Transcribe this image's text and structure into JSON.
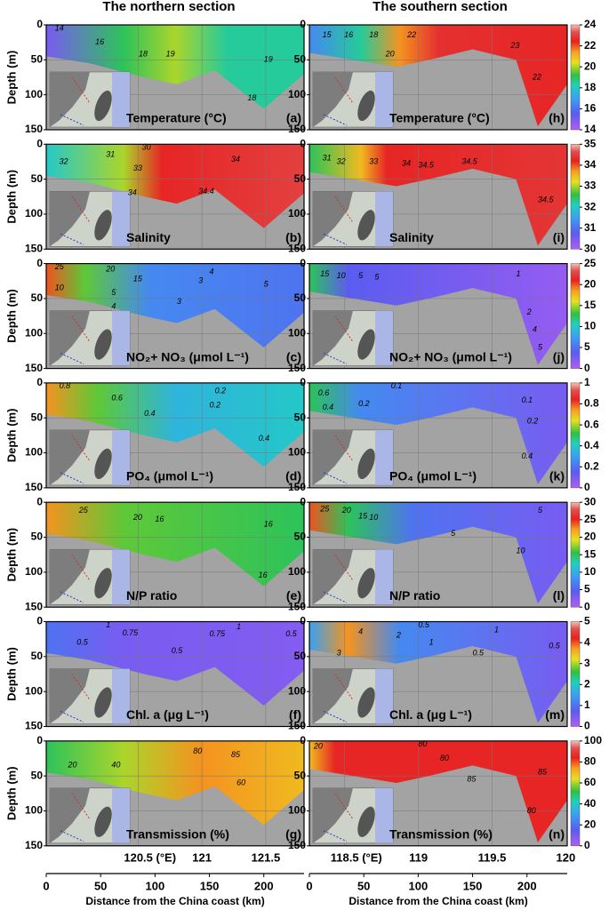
{
  "sections": [
    "The northern section",
    "The southern section"
  ],
  "x_axes": [
    {
      "xlabel": "Distance from the China coast (km)",
      "xlim": [
        0,
        237
      ],
      "xticks": [
        0,
        50,
        100,
        150,
        200
      ],
      "lonlim": [
        119.78,
        121.8
      ],
      "lonticks": [
        {
          "value": 120.5,
          "label": "120.5 (°E)"
        },
        121,
        121.5
      ]
    },
    {
      "xlabel": "Distance from the China coast (km)",
      "xlim": [
        0,
        237
      ],
      "xticks": [
        0,
        50,
        100,
        150,
        200
      ],
      "lonlim": [
        118.26,
        120.01
      ],
      "lonticks": [
        {
          "value": 118.5,
          "label": "118.5 (°E)"
        },
        119,
        119.5,
        120
      ]
    }
  ],
  "chart_data": [
    {
      "type": "contour",
      "label": "Temperature (°C)",
      "panel": "(a)",
      "ylabel": "Depth (m)",
      "ylim": [
        150,
        0
      ],
      "yticks": [
        0,
        50,
        100,
        150
      ],
      "contour_labels": [
        14,
        16,
        18,
        19,
        19,
        18
      ]
    },
    {
      "type": "contour",
      "label": "Temperature (°C)",
      "panel": "(h)",
      "ylim": [
        150,
        0
      ],
      "yticks": [
        0,
        50,
        100,
        150
      ],
      "contour_labels": [
        15,
        16,
        18,
        20,
        22,
        23,
        22
      ],
      "colorbar": {
        "lim": [
          14,
          24
        ],
        "ticks": [
          14,
          16,
          18,
          20,
          22,
          24
        ]
      }
    },
    {
      "type": "contour",
      "label": "Salinity",
      "panel": "(b)",
      "ylabel": "Depth (m)",
      "ylim": [
        150,
        0
      ],
      "yticks": [
        0,
        50,
        100,
        150
      ],
      "contour_labels": [
        30,
        31,
        32,
        33,
        34,
        34,
        34.4
      ]
    },
    {
      "type": "contour",
      "label": "Salinity",
      "panel": "(i)",
      "ylim": [
        150,
        0
      ],
      "yticks": [
        0,
        50,
        100,
        150
      ],
      "contour_labels": [
        31,
        32,
        33,
        34,
        34.5,
        34.5,
        34.5
      ],
      "colorbar": {
        "lim": [
          30,
          35
        ],
        "ticks": [
          30,
          31,
          32,
          33,
          34,
          35
        ]
      }
    },
    {
      "type": "contour",
      "label": "NO₂+ NO₃ (μmol L⁻¹)",
      "panel": "(c)",
      "ylabel": "Depth (m)",
      "ylim": [
        150,
        0
      ],
      "yticks": [
        0,
        50,
        100,
        150
      ],
      "contour_labels": [
        25,
        20,
        15,
        10,
        5,
        4,
        3,
        3,
        4,
        5
      ]
    },
    {
      "type": "contour",
      "label": "NO₂+ NO₃ (μmol L⁻¹)",
      "panel": "(j)",
      "ylim": [
        150,
        0
      ],
      "yticks": [
        0,
        50,
        100,
        150
      ],
      "contour_labels": [
        15,
        10,
        5,
        5,
        1,
        2,
        4,
        5
      ],
      "colorbar": {
        "lim": [
          0,
          25
        ],
        "ticks": [
          0,
          5,
          10,
          15,
          20,
          25
        ]
      }
    },
    {
      "type": "contour",
      "label": "PO₄ (μmol L⁻¹)",
      "panel": "(d)",
      "ylabel": "Depth (m)",
      "ylim": [
        150,
        0
      ],
      "yticks": [
        0,
        50,
        100,
        150
      ],
      "contour_labels": [
        0.8,
        0.6,
        0.4,
        0.2,
        0.2,
        0.4
      ]
    },
    {
      "type": "contour",
      "label": "PO₄ (μmol L⁻¹)",
      "panel": "(k)",
      "ylim": [
        150,
        0
      ],
      "yticks": [
        0,
        50,
        100,
        150
      ],
      "contour_labels": [
        0.6,
        0.4,
        0.2,
        0.1,
        0.1,
        0.2,
        0.4
      ],
      "colorbar": {
        "lim": [
          0,
          1
        ],
        "ticks": [
          0,
          0.2,
          0.4,
          0.6,
          0.8,
          1
        ]
      }
    },
    {
      "type": "contour",
      "label": "N/P ratio",
      "panel": "(e)",
      "ylabel": "Depth (m)",
      "ylim": [
        150,
        0
      ],
      "yticks": [
        0,
        50,
        100,
        150
      ],
      "contour_labels": [
        25,
        20,
        16,
        16,
        16
      ]
    },
    {
      "type": "contour",
      "label": "N/P ratio",
      "panel": "(l)",
      "ylim": [
        150,
        0
      ],
      "yticks": [
        0,
        50,
        100,
        150
      ],
      "contour_labels": [
        25,
        20,
        15,
        10,
        5,
        5,
        10
      ],
      "colorbar": {
        "lim": [
          0,
          30
        ],
        "ticks": [
          0,
          5,
          10,
          15,
          20,
          25,
          30
        ]
      }
    },
    {
      "type": "contour",
      "label": "Chl. a (μg L⁻¹)",
      "panel": "(f)",
      "ylabel": "Depth (m)",
      "ylim": [
        150,
        0
      ],
      "yticks": [
        0,
        50,
        100,
        150
      ],
      "contour_labels": [
        1,
        0.75,
        0.5,
        0.75,
        0.5,
        1,
        0.5
      ]
    },
    {
      "type": "contour",
      "label": "Chl. a (μg L⁻¹)",
      "panel": "(m)",
      "ylim": [
        150,
        0
      ],
      "yticks": [
        0,
        50,
        100,
        150
      ],
      "contour_labels": [
        4,
        3,
        2,
        1,
        0.5,
        0.5,
        0.5,
        1
      ],
      "colorbar": {
        "lim": [
          0,
          5
        ],
        "ticks": [
          0,
          1,
          2,
          3,
          4,
          5
        ]
      }
    },
    {
      "type": "contour",
      "label": "Transmission (%)",
      "panel": "(g)",
      "ylabel": "Depth (m)",
      "ylim": [
        150,
        0
      ],
      "yticks": [
        0,
        50,
        100,
        150
      ],
      "contour_labels": [
        20,
        40,
        80,
        85,
        60
      ]
    },
    {
      "type": "contour",
      "label": "Transmission (%)",
      "panel": "(n)",
      "ylim": [
        150,
        0
      ],
      "yticks": [
        0,
        50,
        100,
        150
      ],
      "contour_labels": [
        20,
        80,
        80,
        85,
        85,
        80
      ],
      "colorbar": {
        "lim": [
          0,
          100
        ],
        "ticks": [
          0,
          20,
          40,
          60,
          80,
          100
        ]
      }
    }
  ]
}
